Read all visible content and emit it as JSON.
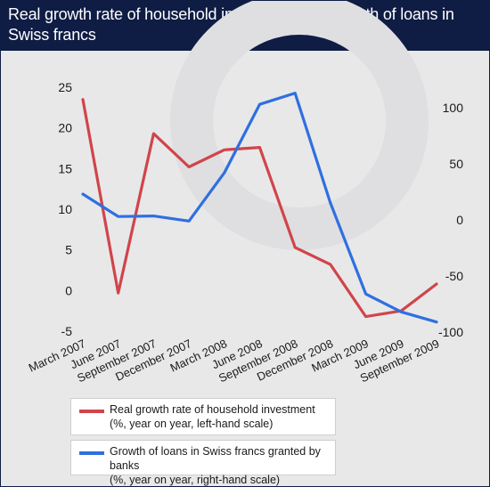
{
  "title": "Real growth rate of household investment and growth of loans in Swiss francs",
  "chart_data": {
    "type": "line",
    "categories": [
      "March 2007",
      "June 2007",
      "September 2007",
      "December 2007",
      "March 2008",
      "June 2008",
      "September 2008",
      "December 2008",
      "March 2009",
      "June 2009",
      "September 2009"
    ],
    "left_axis": {
      "ylim": [
        -5,
        25
      ],
      "ticks": [
        "25",
        "20",
        "15",
        "10",
        "5",
        "0",
        "-5"
      ],
      "tick_values": [
        25,
        20,
        15,
        10,
        5,
        0,
        -5
      ]
    },
    "right_axis": {
      "ylim": [
        -100,
        100
      ],
      "ticks": [
        "100",
        "50",
        "0",
        "-50",
        "-100"
      ],
      "tick_values": [
        100,
        50,
        0,
        -50,
        -100
      ]
    },
    "series": [
      {
        "name": "Real growth rate of household investment",
        "note": "(%, year on year, left-hand scale)",
        "axis": "left",
        "color": "#d0454a",
        "values": [
          23.5,
          -0.3,
          19.3,
          15.2,
          17.3,
          17.6,
          5.3,
          3.2,
          -3.2,
          -2.5,
          0.8
        ]
      },
      {
        "name": "Growth of loans in Swiss francs granted by banks",
        "note": "(%, year on year, right-hand scale)",
        "axis": "right",
        "color": "#2f6fe0",
        "values": [
          23,
          3,
          3.5,
          -1,
          42,
          103,
          113,
          15,
          -66,
          -82,
          -91
        ]
      }
    ],
    "grid": false,
    "legend_position": "bottom-left"
  }
}
